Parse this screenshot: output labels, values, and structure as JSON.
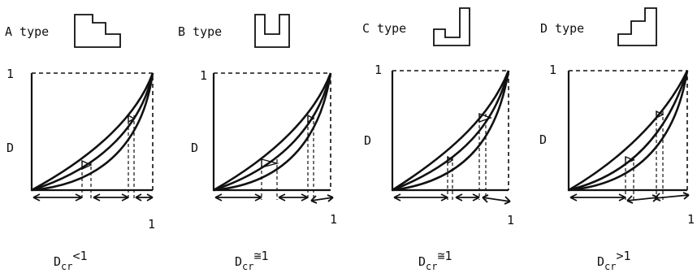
{
  "panels": [
    {
      "type_label": "A type",
      "y_label": "D",
      "x_end": "1",
      "y_end": "1",
      "caption": {
        "base": "D",
        "sub": "cr",
        "rel": "<1"
      }
    },
    {
      "type_label": "B type",
      "y_label": "D",
      "x_end": "1",
      "y_end": "1",
      "caption": {
        "base": "D",
        "sub": "cr",
        "rel": "≅1"
      }
    },
    {
      "type_label": "C type",
      "y_label": "D",
      "x_end": "1",
      "y_end": "1",
      "caption": {
        "base": "D",
        "sub": "cr",
        "rel": "≅1"
      }
    },
    {
      "type_label": "D type",
      "y_label": "D",
      "x_end": "1",
      "y_end": "1",
      "caption": {
        "base": "D",
        "sub": "cr",
        "rel": ">1"
      }
    }
  ]
}
